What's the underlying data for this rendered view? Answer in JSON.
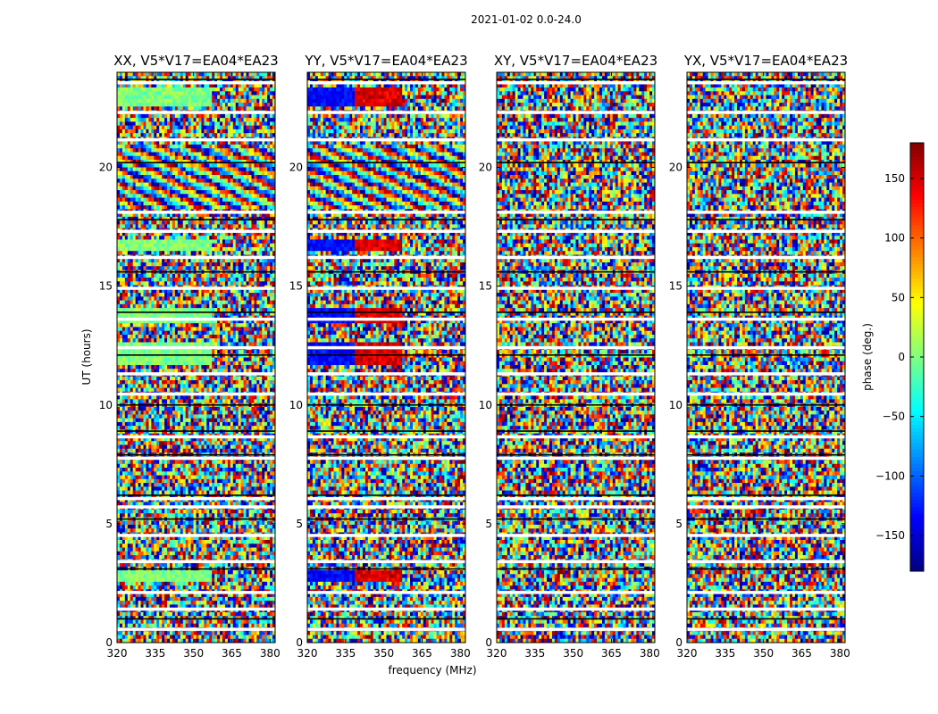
{
  "chart_data": {
    "type": "heatmap",
    "title": "2021-01-02 0.0-24.0",
    "xlabel": "frequency (MHz)",
    "ylabel": "UT (hours)",
    "xlim": [
      320,
      382
    ],
    "ylim": [
      0,
      24
    ],
    "x_ticks": [
      320,
      335,
      350,
      365,
      380
    ],
    "y_ticks": [
      0,
      5,
      10,
      15,
      20
    ],
    "panels": [
      {
        "title": "XX, V5*V17=EA04*EA23",
        "pol": "XX"
      },
      {
        "title": "YY, V5*V17=EA04*EA23",
        "pol": "YY"
      },
      {
        "title": "XY, V5*V17=EA04*EA23",
        "pol": "XY"
      },
      {
        "title": "YX, V5*V17=EA04*EA23",
        "pol": "YX"
      }
    ],
    "colorbar": {
      "label": "phase (deg.)",
      "range": [
        -180,
        180
      ],
      "ticks": [
        -150,
        -100,
        -50,
        0,
        50,
        100,
        150
      ],
      "colormap": "jet"
    }
  }
}
